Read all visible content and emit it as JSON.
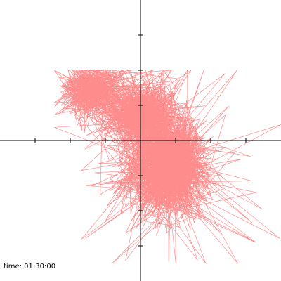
{
  "readout": {
    "time_label": "time:",
    "time_value": "01:30:00"
  },
  "chart_data": {
    "type": "line",
    "title": "",
    "xlabel": "",
    "ylabel": "",
    "xlim": [
      -4,
      4
    ],
    "ylim": [
      -4,
      4
    ],
    "x_ticks": [
      -3,
      -2,
      -1,
      1,
      2,
      3
    ],
    "y_ticks": [
      -3,
      -2,
      -1,
      1,
      2,
      3
    ],
    "tick_labels_shown": false,
    "grid": false,
    "legend": "none",
    "series_color": "#ff0000",
    "series_opacity": 0.45,
    "series_width": 0.7,
    "clusters": [
      {
        "center": [
          0.75,
          -0.75
        ],
        "spread": [
          0.55,
          0.65
        ],
        "weight": 0.55
      },
      {
        "center": [
          -1.4,
          1.4
        ],
        "spread": [
          0.45,
          0.35
        ],
        "weight": 0.2
      },
      {
        "center": [
          0.0,
          0.75
        ],
        "spread": [
          0.55,
          0.45
        ],
        "weight": 0.25
      }
    ],
    "extent": {
      "x": [
        -2.45,
        4.0
      ],
      "y": [
        -3.5,
        2.0
      ]
    },
    "approx_points": 3000
  }
}
